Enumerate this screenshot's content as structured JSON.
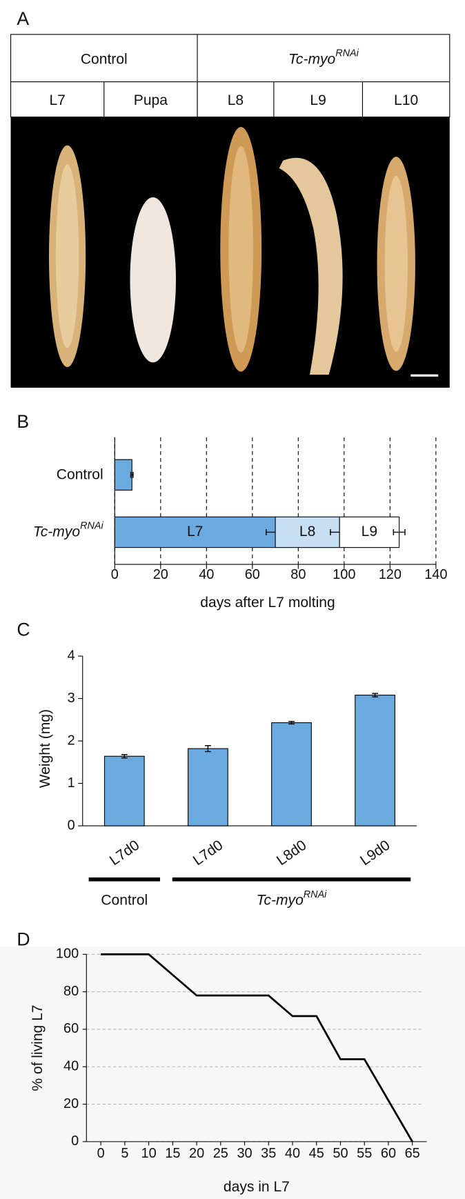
{
  "panel_a": {
    "label": "A",
    "groups": [
      {
        "name": "Control"
      },
      {
        "name": "Tc-myo",
        "sup": "RNAi"
      }
    ],
    "stages": [
      "L7",
      "Pupa",
      "L8",
      "L9",
      "L10"
    ]
  },
  "chart_data": [
    {
      "type": "stacked-barh",
      "panel_label": "B",
      "categories": [
        "Control",
        "Tc-myo"
      ],
      "category_superscripts": [
        null,
        "RNAi"
      ],
      "series": [
        {
          "name": "L7",
          "color": "#6aaade",
          "values": [
            7.5,
            70
          ],
          "errors": [
            0.5,
            4
          ]
        },
        {
          "name": "L8",
          "color": "#c6dff3",
          "values": [
            null,
            28
          ],
          "errors": [
            null,
            4
          ]
        },
        {
          "name": "L9",
          "color": "#ffffff",
          "values": [
            null,
            26
          ],
          "errors": [
            null,
            2.5
          ]
        }
      ],
      "xlim": [
        0,
        140
      ],
      "xticks": [
        0,
        20,
        40,
        60,
        80,
        100,
        120,
        140
      ],
      "grid": true,
      "xlabel": "days after L7 molting"
    },
    {
      "type": "bar",
      "panel_label": "C",
      "categories": [
        "L7d0",
        "L7d0",
        "L8d0",
        "L9d0"
      ],
      "values": [
        1.64,
        1.82,
        2.43,
        3.08
      ],
      "errors": [
        0.04,
        0.07,
        0.03,
        0.04
      ],
      "color": "#6aaade",
      "ylim": [
        0,
        4
      ],
      "yticks": [
        0,
        1,
        2,
        3,
        4
      ],
      "ylabel": "Weight (mg)",
      "groups": [
        {
          "name": "Control",
          "span": 1
        },
        {
          "name": "Tc-myo",
          "sup": "RNAi",
          "span": 3
        }
      ]
    },
    {
      "type": "line",
      "panel_label": "D",
      "x": [
        0,
        10,
        20,
        35,
        40,
        45,
        50,
        55,
        65
      ],
      "values": [
        100,
        100,
        78,
        78,
        67,
        67,
        44,
        44,
        0
      ],
      "color": "#000000",
      "xlim": [
        -3,
        68
      ],
      "xticks": [
        0,
        5,
        10,
        15,
        20,
        25,
        30,
        35,
        40,
        45,
        50,
        55,
        60,
        65
      ],
      "ylim": [
        0,
        100
      ],
      "yticks": [
        0,
        20,
        40,
        60,
        80,
        100
      ],
      "grid": true,
      "xlabel": "days in L7",
      "ylabel": "% of living L7"
    }
  ]
}
